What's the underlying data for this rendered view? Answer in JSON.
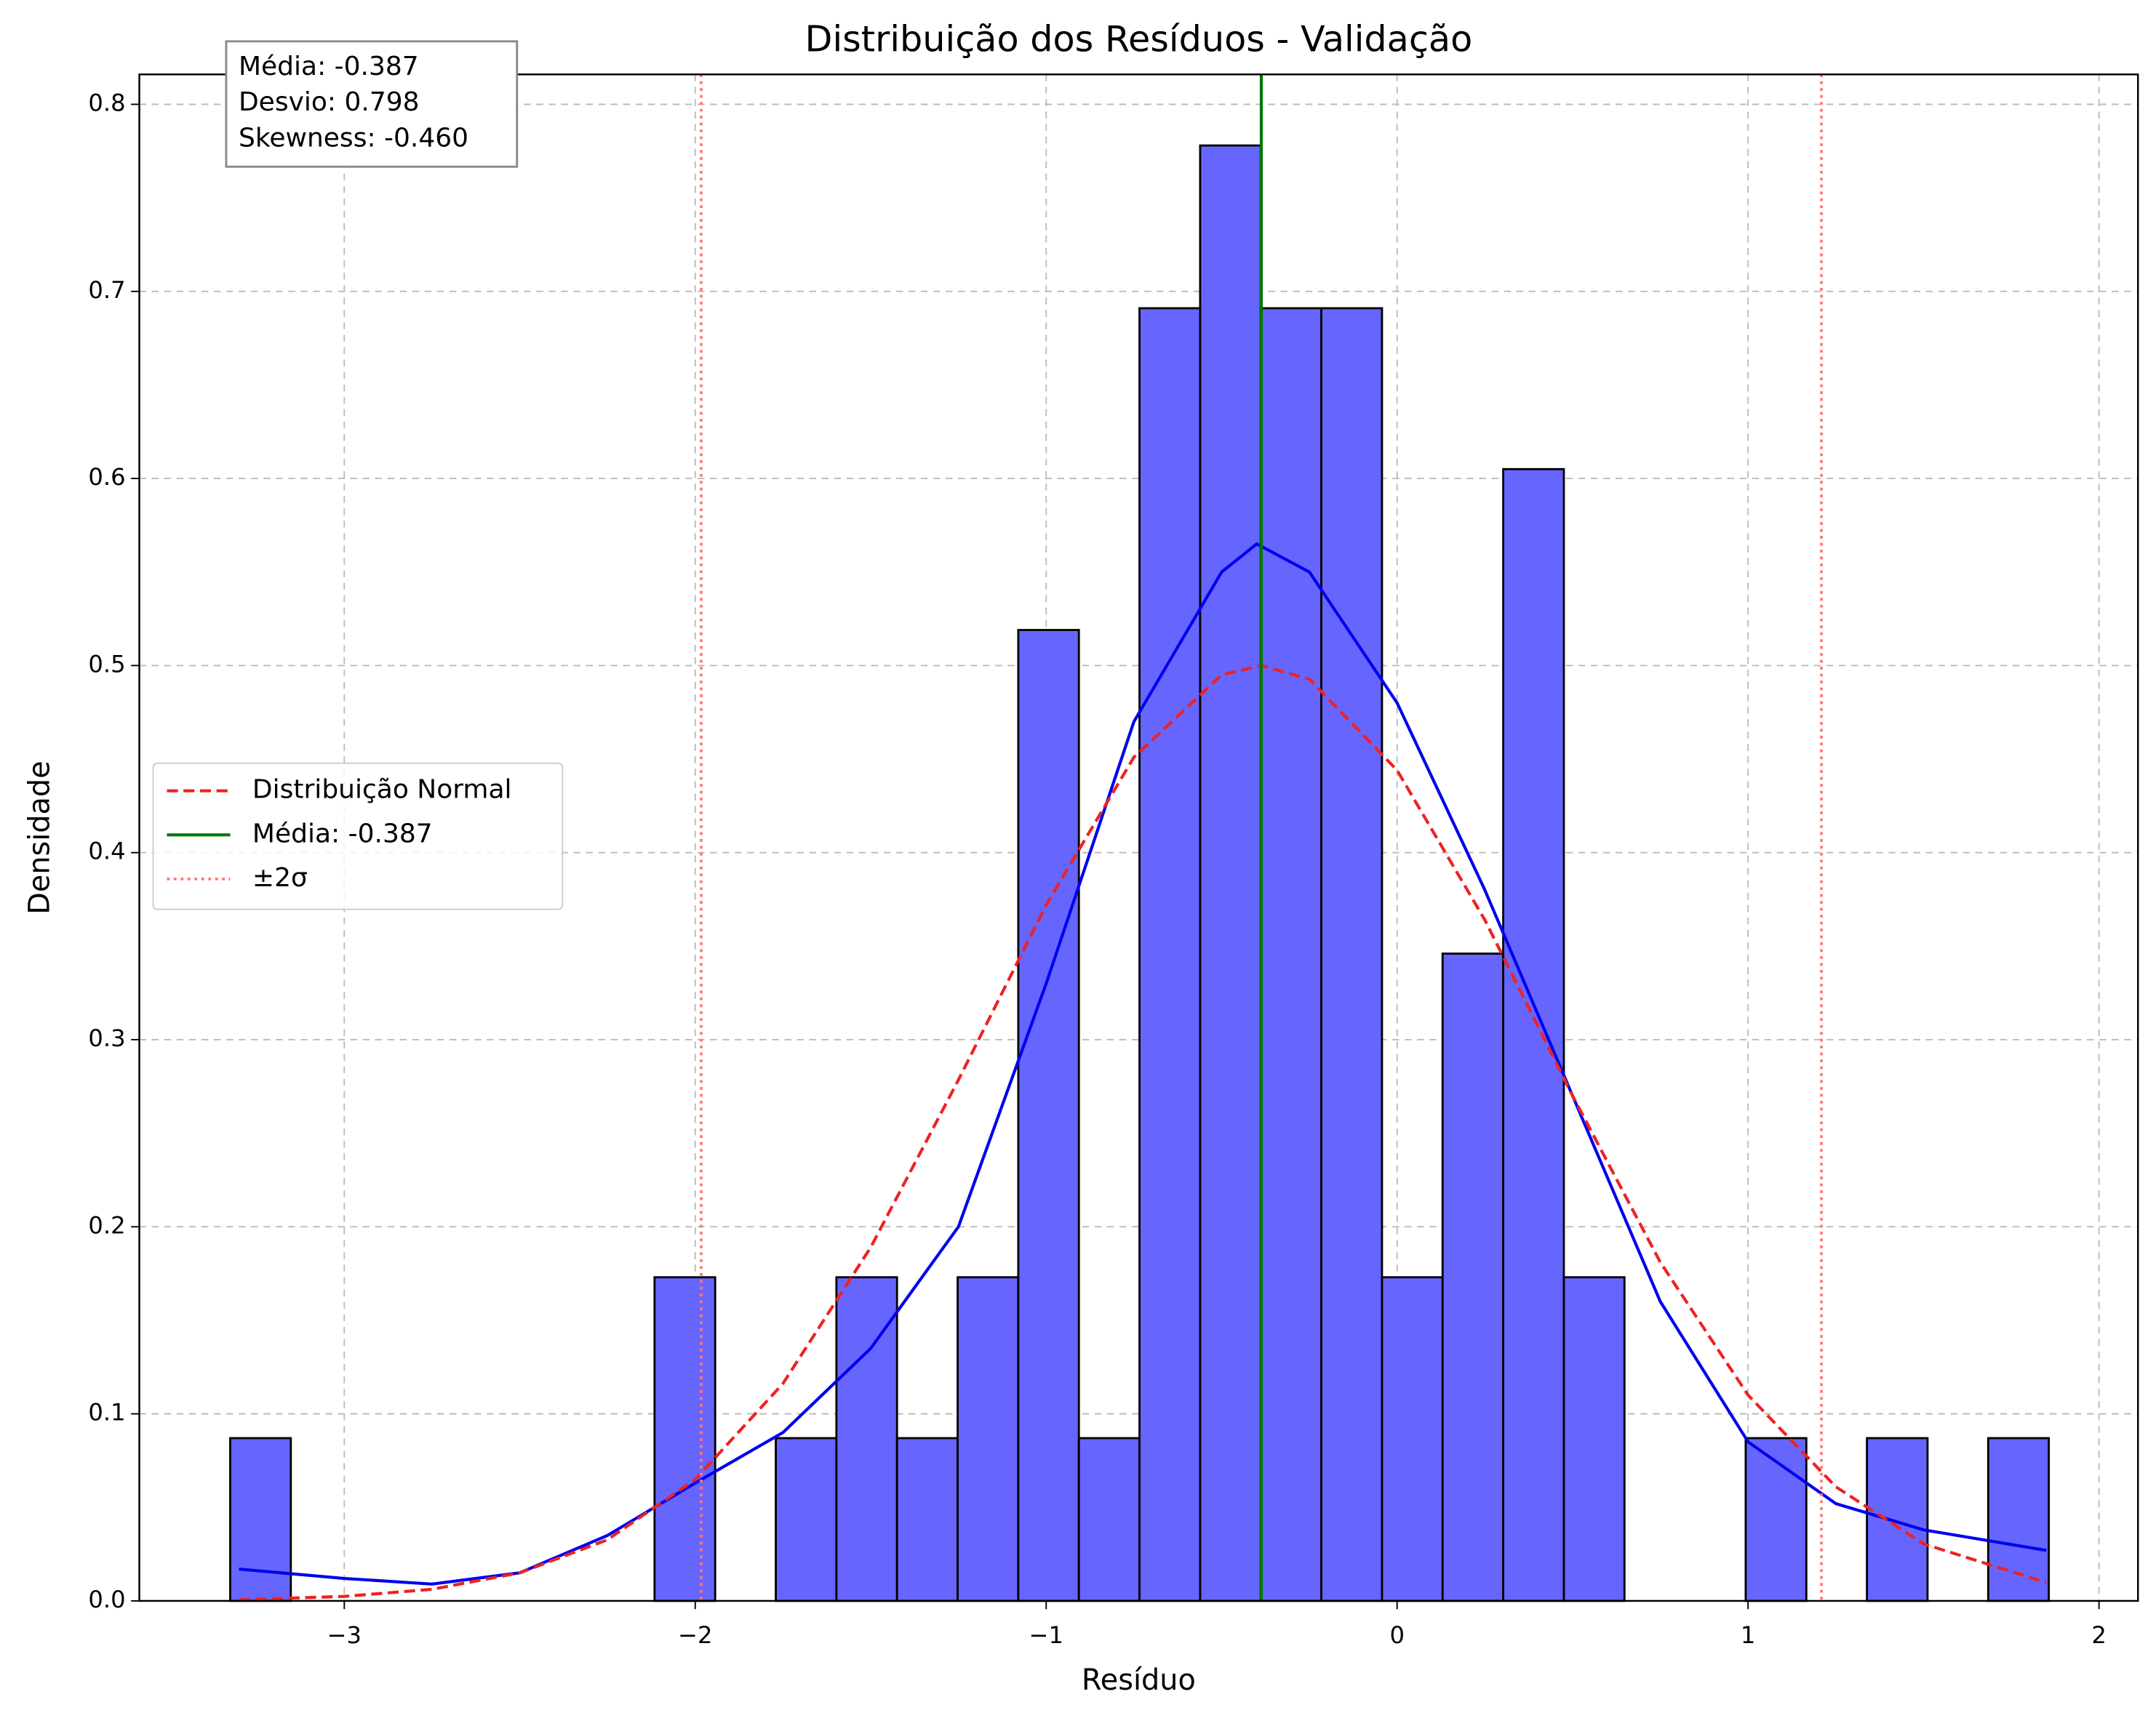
{
  "chart_data": {
    "type": "histogram",
    "title": "Distribuição dos Resíduos - Validação",
    "xlabel": "Resíduo",
    "ylabel": "Densidade",
    "bins": [
      -3.325,
      -3.1523,
      -2.9795,
      -2.8068,
      -2.6341,
      -2.4614,
      -2.2886,
      -2.1159,
      -1.9432,
      -1.7704,
      -1.5977,
      -1.425,
      -1.2522,
      -1.0795,
      -0.9068,
      -0.7341,
      -0.5613,
      -0.3886,
      -0.2159,
      -0.0431,
      0.1296,
      0.3023,
      0.4751,
      0.6478,
      0.8205,
      0.9932,
      1.166,
      1.3387,
      1.5114,
      1.6842,
      1.8569
    ],
    "values": [
      0.087,
      0,
      0,
      0,
      0,
      0,
      0,
      0.173,
      0,
      0.087,
      0.173,
      0.087,
      0.173,
      0.519,
      0.087,
      0.691,
      0.778,
      0.691,
      0.691,
      0.173,
      0.346,
      0.605,
      0.173,
      0,
      0,
      0.087,
      0,
      0.087,
      0,
      0.087
    ],
    "color": "#6666ff",
    "kde": {
      "color": "#0000ee",
      "x": [
        -3.3,
        -3.0,
        -2.75,
        -2.5,
        -2.25,
        -2.0,
        -1.75,
        -1.5,
        -1.25,
        -1.0,
        -0.75,
        -0.5,
        -0.4,
        -0.25,
        0,
        0.25,
        0.5,
        0.75,
        1.0,
        1.25,
        1.5,
        1.85
      ],
      "values": [
        0.017,
        0.012,
        0.009,
        0.015,
        0.035,
        0.063,
        0.09,
        0.135,
        0.2,
        0.33,
        0.47,
        0.55,
        0.565,
        0.55,
        0.48,
        0.38,
        0.27,
        0.16,
        0.085,
        0.052,
        0.038,
        0.027
      ]
    },
    "series": [
      {
        "name": "Distribuição Normal",
        "color": "#ee2222",
        "x": [
          -3.3,
          -3.0,
          -2.75,
          -2.5,
          -2.25,
          -2.0,
          -1.75,
          -1.5,
          -1.25,
          -1.0,
          -0.75,
          -0.5,
          -0.387,
          -0.25,
          0,
          0.25,
          0.5,
          0.75,
          1.0,
          1.25,
          1.5,
          1.85
        ],
        "values": [
          0.0006,
          0.0024,
          0.0062,
          0.015,
          0.0327,
          0.0649,
          0.1162,
          0.189,
          0.2785,
          0.372,
          0.451,
          0.495,
          0.5,
          0.4927,
          0.444,
          0.364,
          0.27,
          0.181,
          0.11,
          0.061,
          0.0305,
          0.0098
        ]
      }
    ],
    "vlines": [
      {
        "name": "Média: -0.387",
        "color": "#007700",
        "values": [
          -0.387
        ]
      },
      {
        "name": "±2σ",
        "color": "#ff7777",
        "values": [
          -1.983,
          1.209
        ]
      }
    ],
    "annotations": [
      "Média: -0.387",
      "Desvio: 0.798",
      "Skewness: -0.460"
    ],
    "xlim": [
      -3.584,
      2.111
    ],
    "ylim": [
      0,
      0.816
    ],
    "xticks": [
      {
        "value": -3,
        "label": "−3"
      },
      {
        "value": -2,
        "label": "−2"
      },
      {
        "value": -1,
        "label": "−1"
      },
      0,
      1,
      2
    ],
    "yticks": [
      {
        "value": 0,
        "label": "0.0"
      },
      0.1,
      0.2,
      0.3,
      0.4,
      0.5,
      0.6,
      0.7,
      0.8
    ],
    "grid": true,
    "legend": "center left"
  }
}
